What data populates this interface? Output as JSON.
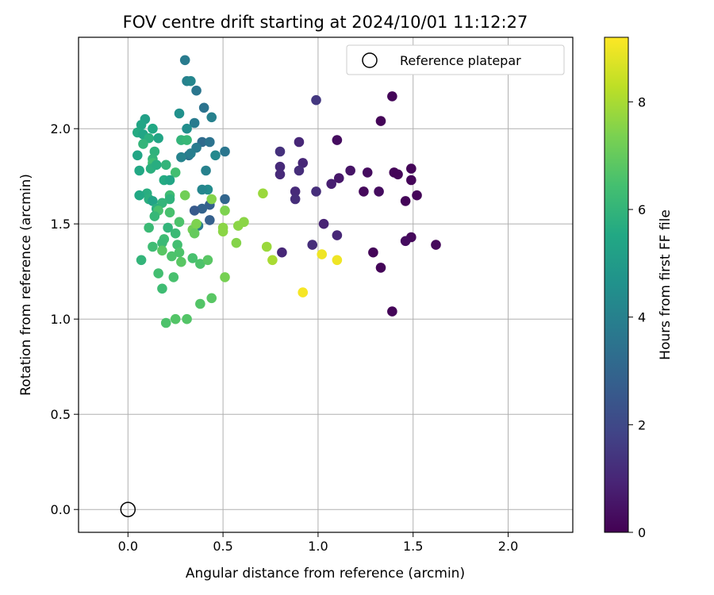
{
  "chart_data": {
    "type": "scatter",
    "title": "FOV centre drift starting at 2024/10/01 11:12:27",
    "xlabel": "Angular distance from reference (arcmin)",
    "ylabel": "Rotation from reference (arcmin)",
    "xlim": [
      -0.26,
      2.34
    ],
    "ylim": [
      -0.12,
      2.48
    ],
    "xticks": [
      "0.0",
      "0.5",
      "1.0",
      "1.5",
      "2.0"
    ],
    "yticks": [
      "0.0",
      "0.5",
      "1.0",
      "1.5",
      "2.0"
    ],
    "grid": true,
    "legend": {
      "placement": "top-right",
      "entries": [
        "Reference platepar"
      ]
    },
    "colorbar": {
      "label": "Hours from first FF file",
      "range": [
        0,
        9.2
      ],
      "ticks": [
        "0",
        "2",
        "4",
        "6",
        "8"
      ],
      "colormap": "viridis"
    },
    "reference_point": {
      "x": 0.0,
      "y": 0.0
    },
    "points": [
      {
        "x": 1.39,
        "y": 2.17,
        "h": 0.1
      },
      {
        "x": 1.33,
        "y": 2.04,
        "h": 0.1
      },
      {
        "x": 1.1,
        "y": 1.94,
        "h": 0.3
      },
      {
        "x": 1.4,
        "y": 1.77,
        "h": 0.1
      },
      {
        "x": 1.42,
        "y": 1.76,
        "h": 0.1
      },
      {
        "x": 1.49,
        "y": 1.79,
        "h": 0.1
      },
      {
        "x": 1.49,
        "y": 1.73,
        "h": 0.1
      },
      {
        "x": 1.26,
        "y": 1.77,
        "h": 0.3
      },
      {
        "x": 1.17,
        "y": 1.78,
        "h": 0.5
      },
      {
        "x": 1.11,
        "y": 1.74,
        "h": 0.6
      },
      {
        "x": 1.07,
        "y": 1.71,
        "h": 0.8
      },
      {
        "x": 1.24,
        "y": 1.67,
        "h": 0.2
      },
      {
        "x": 1.32,
        "y": 1.67,
        "h": 0.3
      },
      {
        "x": 1.46,
        "y": 1.62,
        "h": 0.1
      },
      {
        "x": 1.52,
        "y": 1.65,
        "h": 0.1
      },
      {
        "x": 1.49,
        "y": 1.43,
        "h": 0.2
      },
      {
        "x": 1.46,
        "y": 1.41,
        "h": 0.3
      },
      {
        "x": 1.62,
        "y": 1.39,
        "h": 0.2
      },
      {
        "x": 1.29,
        "y": 1.35,
        "h": 0.1
      },
      {
        "x": 1.33,
        "y": 1.27,
        "h": 0.1
      },
      {
        "x": 1.39,
        "y": 1.04,
        "h": 0.1
      },
      {
        "x": 0.99,
        "y": 2.15,
        "h": 1.5
      },
      {
        "x": 0.9,
        "y": 1.93,
        "h": 1.0
      },
      {
        "x": 0.8,
        "y": 1.88,
        "h": 1.3
      },
      {
        "x": 0.92,
        "y": 1.82,
        "h": 1.0
      },
      {
        "x": 0.9,
        "y": 1.78,
        "h": 1.2
      },
      {
        "x": 0.8,
        "y": 1.8,
        "h": 1.1
      },
      {
        "x": 0.8,
        "y": 1.76,
        "h": 1.1
      },
      {
        "x": 0.88,
        "y": 1.67,
        "h": 1.1
      },
      {
        "x": 0.88,
        "y": 1.63,
        "h": 1.2
      },
      {
        "x": 0.99,
        "y": 1.67,
        "h": 1.2
      },
      {
        "x": 1.03,
        "y": 1.5,
        "h": 0.9
      },
      {
        "x": 1.1,
        "y": 1.44,
        "h": 1.0
      },
      {
        "x": 0.97,
        "y": 1.39,
        "h": 1.2
      },
      {
        "x": 0.81,
        "y": 1.35,
        "h": 1.0
      },
      {
        "x": 0.3,
        "y": 2.36,
        "h": 3.8
      },
      {
        "x": 0.31,
        "y": 2.25,
        "h": 4.0
      },
      {
        "x": 0.33,
        "y": 2.25,
        "h": 4.2
      },
      {
        "x": 0.36,
        "y": 2.2,
        "h": 3.6
      },
      {
        "x": 0.4,
        "y": 2.11,
        "h": 3.5
      },
      {
        "x": 0.44,
        "y": 2.06,
        "h": 4.0
      },
      {
        "x": 0.27,
        "y": 2.08,
        "h": 4.6
      },
      {
        "x": 0.35,
        "y": 2.03,
        "h": 3.8
      },
      {
        "x": 0.31,
        "y": 2.0,
        "h": 4.5
      },
      {
        "x": 0.39,
        "y": 1.93,
        "h": 3.2
      },
      {
        "x": 0.43,
        "y": 1.93,
        "h": 3.5
      },
      {
        "x": 0.36,
        "y": 1.9,
        "h": 3.8
      },
      {
        "x": 0.32,
        "y": 1.86,
        "h": 3.5
      },
      {
        "x": 0.33,
        "y": 1.87,
        "h": 3.9
      },
      {
        "x": 0.28,
        "y": 1.85,
        "h": 4.1
      },
      {
        "x": 0.46,
        "y": 1.86,
        "h": 4.3
      },
      {
        "x": 0.51,
        "y": 1.88,
        "h": 3.6
      },
      {
        "x": 0.41,
        "y": 1.78,
        "h": 4.0
      },
      {
        "x": 0.42,
        "y": 1.68,
        "h": 4.4
      },
      {
        "x": 0.39,
        "y": 1.68,
        "h": 4.2
      },
      {
        "x": 0.51,
        "y": 1.63,
        "h": 3.0
      },
      {
        "x": 0.43,
        "y": 1.6,
        "h": 2.8
      },
      {
        "x": 0.39,
        "y": 1.58,
        "h": 2.9
      },
      {
        "x": 0.35,
        "y": 1.57,
        "h": 2.6
      },
      {
        "x": 0.43,
        "y": 1.52,
        "h": 2.8
      },
      {
        "x": 0.37,
        "y": 1.49,
        "h": 3.8
      },
      {
        "x": 0.09,
        "y": 2.05,
        "h": 5.2
      },
      {
        "x": 0.07,
        "y": 2.02,
        "h": 5.4
      },
      {
        "x": 0.13,
        "y": 2.0,
        "h": 5.5
      },
      {
        "x": 0.05,
        "y": 1.98,
        "h": 5.6
      },
      {
        "x": 0.08,
        "y": 1.97,
        "h": 5.4
      },
      {
        "x": 0.11,
        "y": 1.95,
        "h": 5.8
      },
      {
        "x": 0.16,
        "y": 1.95,
        "h": 5.4
      },
      {
        "x": 0.08,
        "y": 1.92,
        "h": 6.0
      },
      {
        "x": 0.28,
        "y": 1.94,
        "h": 6.0
      },
      {
        "x": 0.31,
        "y": 1.94,
        "h": 6.1
      },
      {
        "x": 0.14,
        "y": 1.88,
        "h": 5.9
      },
      {
        "x": 0.05,
        "y": 1.86,
        "h": 5.4
      },
      {
        "x": 0.13,
        "y": 1.84,
        "h": 6.0
      },
      {
        "x": 0.13,
        "y": 1.82,
        "h": 6.3
      },
      {
        "x": 0.12,
        "y": 1.79,
        "h": 5.8
      },
      {
        "x": 0.15,
        "y": 1.81,
        "h": 5.7
      },
      {
        "x": 0.2,
        "y": 1.81,
        "h": 6.0
      },
      {
        "x": 0.06,
        "y": 1.78,
        "h": 5.5
      },
      {
        "x": 0.25,
        "y": 1.77,
        "h": 6.4
      },
      {
        "x": 0.19,
        "y": 1.73,
        "h": 5.6
      },
      {
        "x": 0.22,
        "y": 1.73,
        "h": 5.4
      },
      {
        "x": 0.1,
        "y": 1.66,
        "h": 5.7
      },
      {
        "x": 0.06,
        "y": 1.65,
        "h": 5.5
      },
      {
        "x": 0.11,
        "y": 1.63,
        "h": 5.8
      },
      {
        "x": 0.13,
        "y": 1.62,
        "h": 5.3
      },
      {
        "x": 0.22,
        "y": 1.65,
        "h": 6.3
      },
      {
        "x": 0.22,
        "y": 1.63,
        "h": 5.9
      },
      {
        "x": 0.18,
        "y": 1.61,
        "h": 6.0
      },
      {
        "x": 0.15,
        "y": 1.58,
        "h": 5.8
      },
      {
        "x": 0.16,
        "y": 1.57,
        "h": 6.5
      },
      {
        "x": 0.14,
        "y": 1.54,
        "h": 6.1
      },
      {
        "x": 0.22,
        "y": 1.56,
        "h": 6.5
      },
      {
        "x": 0.21,
        "y": 1.48,
        "h": 6.0
      },
      {
        "x": 0.11,
        "y": 1.48,
        "h": 6.2
      },
      {
        "x": 0.27,
        "y": 1.51,
        "h": 6.6
      },
      {
        "x": 0.25,
        "y": 1.45,
        "h": 6.2
      },
      {
        "x": 0.19,
        "y": 1.42,
        "h": 6.3
      },
      {
        "x": 0.18,
        "y": 1.4,
        "h": 6.2
      },
      {
        "x": 0.13,
        "y": 1.38,
        "h": 6.3
      },
      {
        "x": 0.26,
        "y": 1.39,
        "h": 6.4
      },
      {
        "x": 0.18,
        "y": 1.36,
        "h": 6.8
      },
      {
        "x": 0.23,
        "y": 1.33,
        "h": 6.6
      },
      {
        "x": 0.27,
        "y": 1.35,
        "h": 6.6
      },
      {
        "x": 0.28,
        "y": 1.3,
        "h": 6.8
      },
      {
        "x": 0.34,
        "y": 1.32,
        "h": 6.5
      },
      {
        "x": 0.38,
        "y": 1.29,
        "h": 6.6
      },
      {
        "x": 0.42,
        "y": 1.31,
        "h": 6.8
      },
      {
        "x": 0.07,
        "y": 1.31,
        "h": 6.0
      },
      {
        "x": 0.16,
        "y": 1.24,
        "h": 6.4
      },
      {
        "x": 0.24,
        "y": 1.22,
        "h": 6.5
      },
      {
        "x": 0.18,
        "y": 1.16,
        "h": 6.3
      },
      {
        "x": 0.44,
        "y": 1.11,
        "h": 6.8
      },
      {
        "x": 0.38,
        "y": 1.08,
        "h": 6.7
      },
      {
        "x": 0.25,
        "y": 1.0,
        "h": 6.7
      },
      {
        "x": 0.31,
        "y": 1.0,
        "h": 6.7
      },
      {
        "x": 0.2,
        "y": 0.98,
        "h": 6.6
      },
      {
        "x": 0.3,
        "y": 1.65,
        "h": 7.2
      },
      {
        "x": 0.34,
        "y": 1.47,
        "h": 7.2
      },
      {
        "x": 0.36,
        "y": 1.5,
        "h": 7.4
      },
      {
        "x": 0.35,
        "y": 1.45,
        "h": 7.0
      },
      {
        "x": 0.44,
        "y": 1.63,
        "h": 7.5
      },
      {
        "x": 0.51,
        "y": 1.57,
        "h": 7.4
      },
      {
        "x": 0.5,
        "y": 1.48,
        "h": 7.6
      },
      {
        "x": 0.5,
        "y": 1.46,
        "h": 7.6
      },
      {
        "x": 0.58,
        "y": 1.49,
        "h": 7.6
      },
      {
        "x": 0.61,
        "y": 1.51,
        "h": 7.6
      },
      {
        "x": 0.57,
        "y": 1.4,
        "h": 7.5
      },
      {
        "x": 0.51,
        "y": 1.22,
        "h": 7.3
      },
      {
        "x": 0.71,
        "y": 1.66,
        "h": 7.8
      },
      {
        "x": 0.73,
        "y": 1.38,
        "h": 7.8
      },
      {
        "x": 0.76,
        "y": 1.31,
        "h": 8.0
      },
      {
        "x": 1.02,
        "y": 1.34,
        "h": 9.0
      },
      {
        "x": 1.1,
        "y": 1.31,
        "h": 9.0
      },
      {
        "x": 0.92,
        "y": 1.14,
        "h": 9.1
      }
    ]
  }
}
